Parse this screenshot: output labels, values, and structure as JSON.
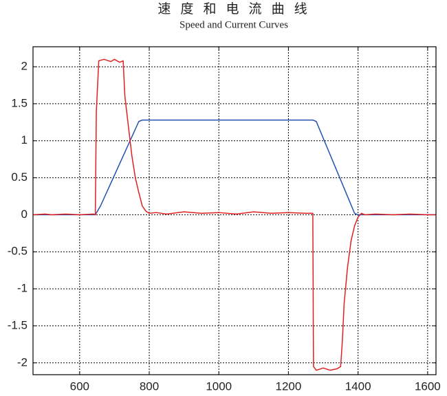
{
  "chart_data": {
    "type": "line",
    "title": "速 度 和 电 流 曲 线",
    "subtitle": "Speed and Current Curves",
    "xlim": [
      466,
      1624
    ],
    "xticks": [
      600,
      800,
      1000,
      1200,
      1400,
      1600
    ],
    "ylim": [
      -2.16,
      2.27
    ],
    "yticks": [
      -2,
      -1.5,
      -1,
      -0.5,
      0,
      0.5,
      1,
      1.5,
      2
    ],
    "grid": true,
    "series": [
      {
        "color": "#1f4fb0",
        "x": [
          466,
          645,
          660,
          770,
          780,
          1270,
          1280,
          1390,
          1400,
          1624
        ],
        "values": [
          0,
          0,
          0.12,
          1.26,
          1.28,
          1.28,
          1.26,
          0.02,
          0,
          0
        ]
      },
      {
        "color": "#e02020",
        "x": [
          466,
          500,
          520,
          560,
          600,
          640,
          645,
          648,
          655,
          670,
          690,
          700,
          715,
          725,
          730,
          740,
          750,
          760,
          770,
          780,
          790,
          800,
          820,
          850,
          900,
          950,
          1000,
          1050,
          1100,
          1150,
          1200,
          1250,
          1270,
          1272,
          1280,
          1300,
          1320,
          1340,
          1350,
          1355,
          1360,
          1370,
          1380,
          1390,
          1400,
          1410,
          1420,
          1450,
          1500,
          1550,
          1600,
          1624
        ],
        "values": [
          0,
          0.01,
          0,
          0.01,
          0,
          0.01,
          0,
          1.4,
          2.08,
          2.1,
          2.07,
          2.1,
          2.06,
          2.08,
          1.6,
          1.2,
          0.8,
          0.5,
          0.3,
          0.12,
          0.05,
          0.02,
          0.03,
          0.01,
          0.04,
          0.02,
          0.03,
          0.01,
          0.04,
          0.02,
          0.03,
          0.02,
          0.02,
          -2.05,
          -2.1,
          -2.07,
          -2.1,
          -2.08,
          -2.05,
          -1.7,
          -1.2,
          -0.7,
          -0.35,
          -0.15,
          -0.03,
          0.02,
          0,
          0.01,
          0,
          0.01,
          0,
          0
        ]
      }
    ]
  }
}
